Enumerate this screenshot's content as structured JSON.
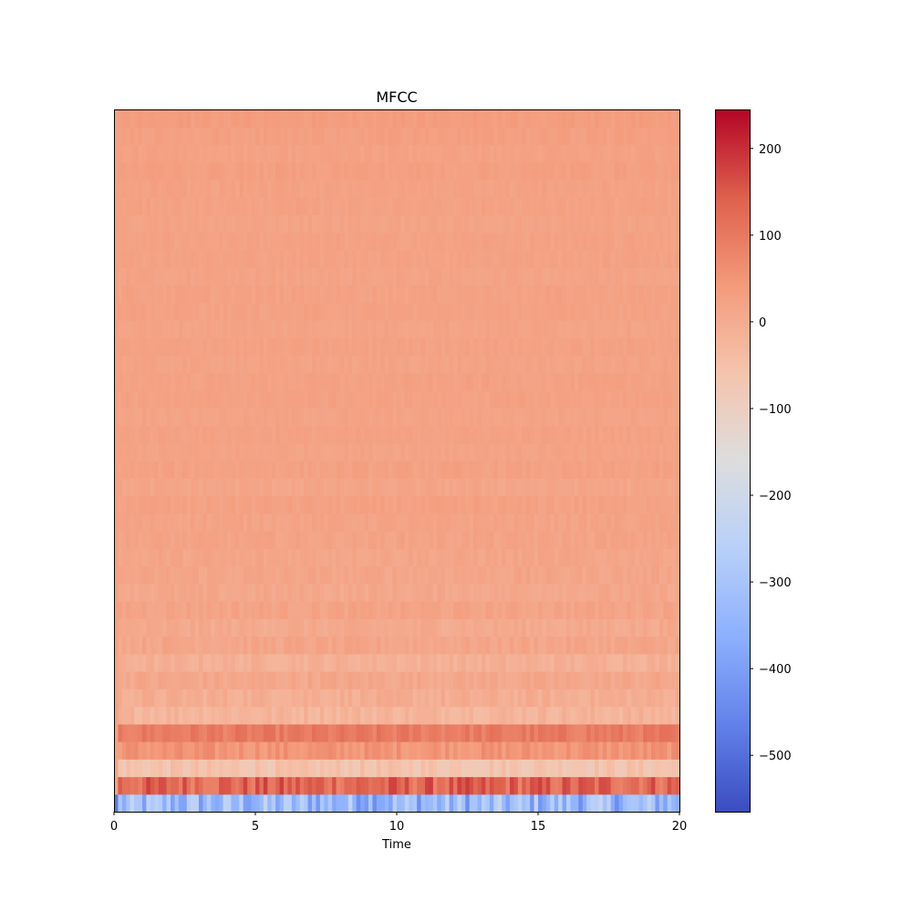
{
  "chart_data": {
    "type": "heatmap",
    "title": "MFCC",
    "xlabel": "Time",
    "ylabel": "",
    "xlim": [
      0,
      20
    ],
    "x_ticks": [
      0,
      5,
      10,
      15,
      20
    ],
    "x_tick_labels": [
      "0",
      "5",
      "10",
      "15",
      "20"
    ],
    "n_coefficients": 40,
    "n_frames": 140,
    "colormap": "coolwarm",
    "colorbar": {
      "vmin": -565,
      "vmax": 245,
      "ticks": [
        200,
        100,
        0,
        -100,
        -200,
        -300,
        -400,
        -500
      ],
      "tick_labels": [
        "200",
        "100",
        "0",
        "−100",
        "−200",
        "−300",
        "−400",
        "−500"
      ]
    },
    "coefficient_means_bottom_to_top": [
      -330,
      130,
      -60,
      50,
      95,
      -20,
      -5,
      10,
      -10,
      15,
      5,
      20,
      10,
      15,
      15,
      20,
      20,
      25,
      15,
      25,
      20,
      25,
      20,
      25,
      25,
      20,
      25,
      20,
      25,
      25,
      20,
      25,
      25,
      20,
      25,
      25,
      30,
      25,
      30,
      35
    ]
  }
}
